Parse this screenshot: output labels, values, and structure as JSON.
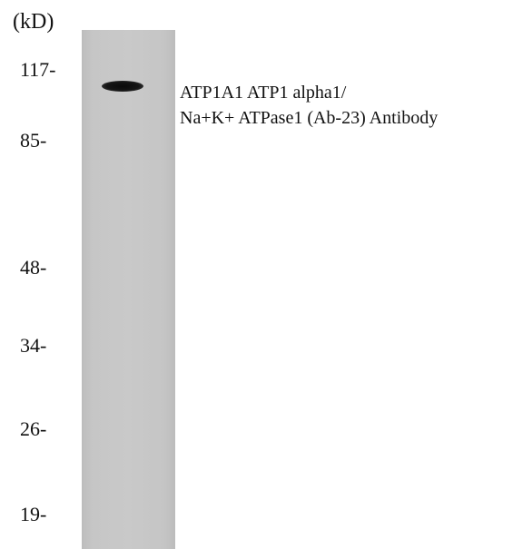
{
  "unit_label": "(kD)",
  "markers": [
    {
      "label": "117-",
      "kd": 117
    },
    {
      "label": "85-",
      "kd": 85
    },
    {
      "label": "48-",
      "kd": 48
    },
    {
      "label": "34-",
      "kd": 34
    },
    {
      "label": "26-",
      "kd": 26
    },
    {
      "label": "19-",
      "kd": 19
    }
  ],
  "antibody_label": {
    "line1": "ATP1A1 ATP1 alpha1/",
    "line2": "Na+K+ ATPase1 (Ab-23) Antibody"
  }
}
